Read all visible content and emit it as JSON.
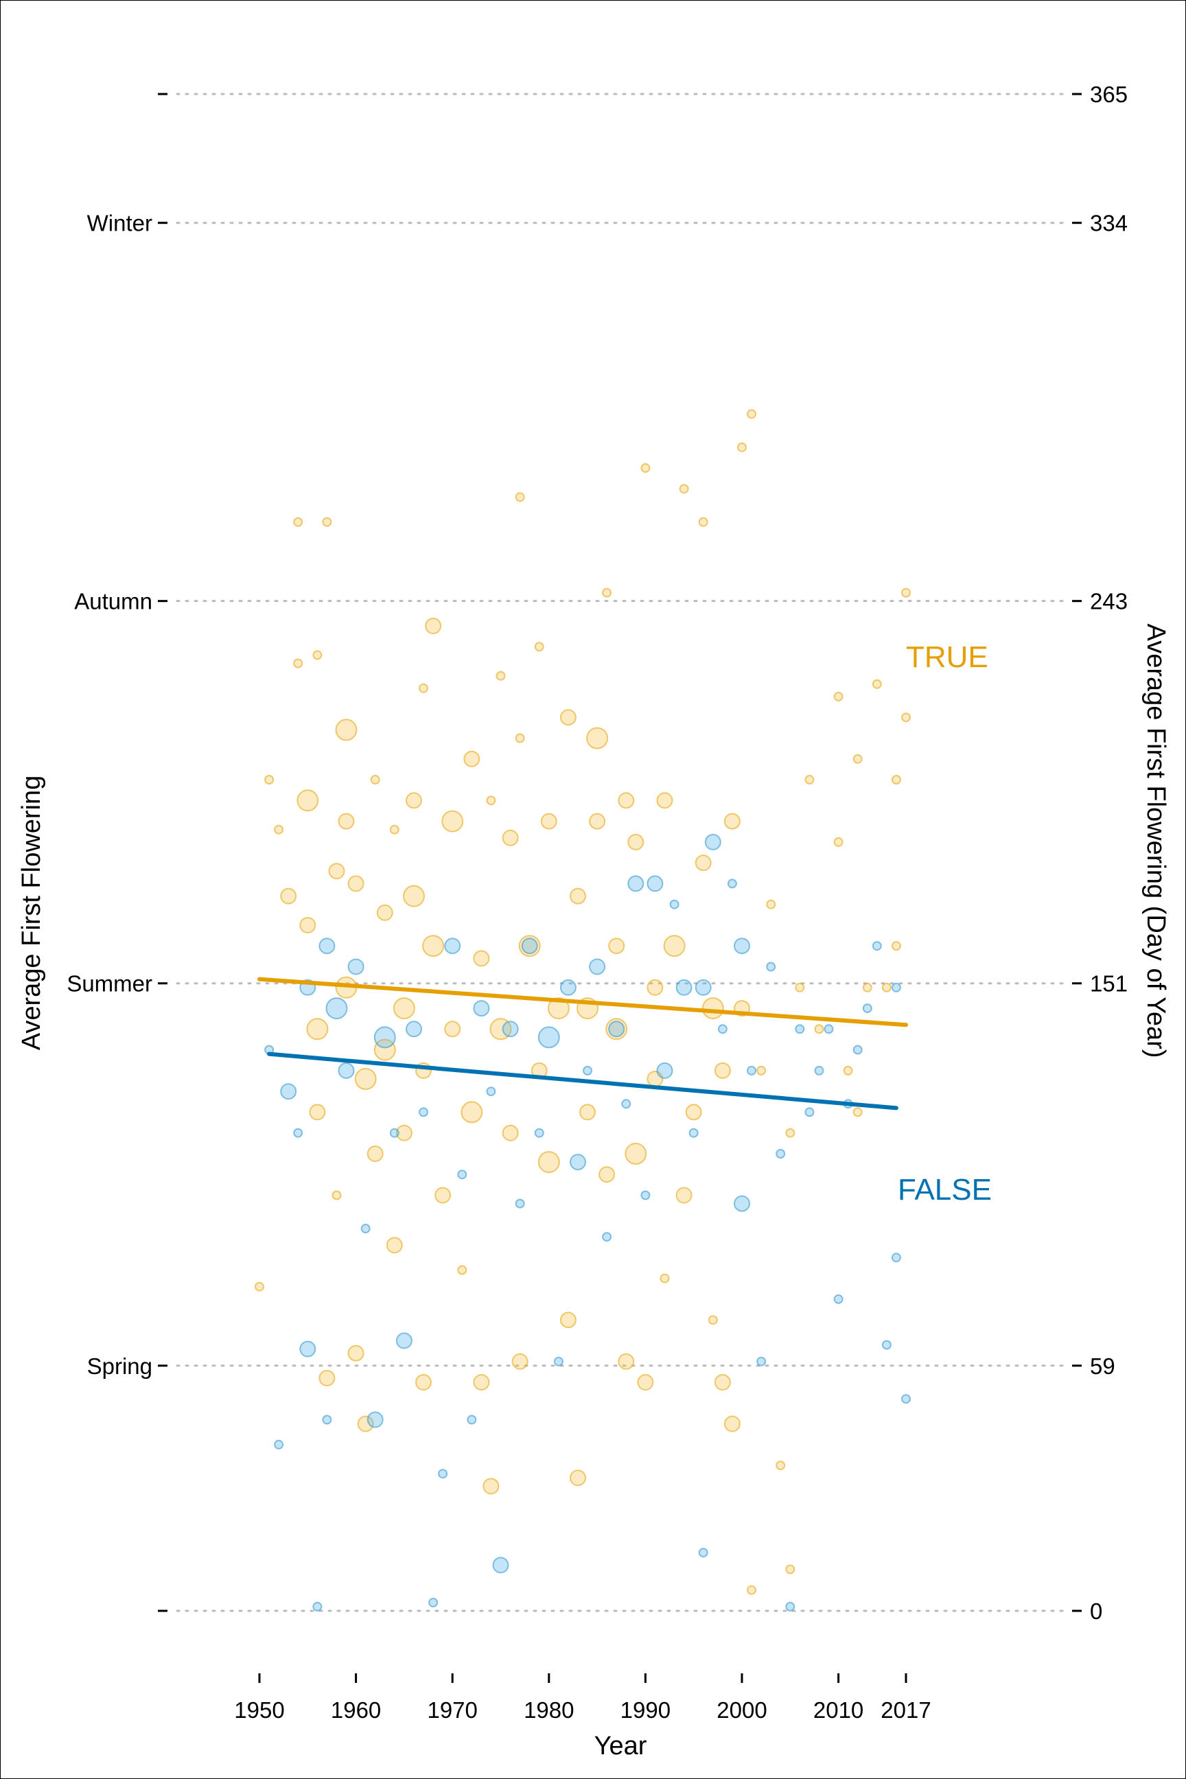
{
  "chart_data": {
    "type": "scatter",
    "title": "",
    "xlabel": "Year",
    "ylabel_left": "Average First Flowering",
    "ylabel_right": "Average First Flowering (Day of Year)",
    "xlim": [
      1950,
      2017
    ],
    "ylim": [
      0,
      365
    ],
    "x_ticks": [
      1950,
      1960,
      1970,
      1980,
      1990,
      2000,
      2010,
      2017
    ],
    "y_ticks_right": [
      0,
      59,
      151,
      243,
      334,
      365
    ],
    "y_ticks_left": [
      {
        "value": 0,
        "label": ""
      },
      {
        "value": 59,
        "label": "Spring"
      },
      {
        "value": 151,
        "label": "Summer"
      },
      {
        "value": 243,
        "label": "Autumn"
      },
      {
        "value": 334,
        "label": "Winter"
      },
      {
        "value": 365,
        "label": ""
      }
    ],
    "grid": "dotted horizontal lines at y ticks",
    "legend": "direct labels on the right",
    "series": [
      {
        "name": "TRUE",
        "color": "#E69F00",
        "trend": [
          [
            1950,
            152
          ],
          [
            2017,
            141
          ]
        ],
        "points": [
          [
            1950,
            78,
            1
          ],
          [
            1951,
            200,
            1
          ],
          [
            1952,
            188,
            1
          ],
          [
            1953,
            172,
            2
          ],
          [
            1954,
            262,
            1
          ],
          [
            1954,
            228,
            1
          ],
          [
            1955,
            195,
            3
          ],
          [
            1955,
            165,
            2
          ],
          [
            1956,
            140,
            3
          ],
          [
            1956,
            120,
            2
          ],
          [
            1956,
            230,
            1
          ],
          [
            1957,
            262,
            1
          ],
          [
            1957,
            56,
            2
          ],
          [
            1958,
            178,
            2
          ],
          [
            1958,
            100,
            1
          ],
          [
            1959,
            212,
            3
          ],
          [
            1959,
            190,
            2
          ],
          [
            1959,
            150,
            3
          ],
          [
            1960,
            62,
            2
          ],
          [
            1960,
            175,
            2
          ],
          [
            1961,
            128,
            3
          ],
          [
            1961,
            45,
            2
          ],
          [
            1962,
            200,
            1
          ],
          [
            1962,
            110,
            2
          ],
          [
            1963,
            168,
            2
          ],
          [
            1963,
            135,
            3
          ],
          [
            1964,
            188,
            1
          ],
          [
            1964,
            88,
            2
          ],
          [
            1965,
            145,
            3
          ],
          [
            1965,
            115,
            2
          ],
          [
            1966,
            195,
            2
          ],
          [
            1966,
            172,
            3
          ],
          [
            1967,
            222,
            1
          ],
          [
            1967,
            130,
            2
          ],
          [
            1967,
            55,
            2
          ],
          [
            1968,
            237,
            2
          ],
          [
            1968,
            160,
            3
          ],
          [
            1969,
            100,
            2
          ],
          [
            1970,
            190,
            3
          ],
          [
            1970,
            140,
            2
          ],
          [
            1971,
            82,
            1
          ],
          [
            1972,
            205,
            2
          ],
          [
            1972,
            120,
            3
          ],
          [
            1973,
            55,
            2
          ],
          [
            1973,
            157,
            2
          ],
          [
            1974,
            195,
            1
          ],
          [
            1974,
            30,
            2
          ],
          [
            1975,
            225,
            1
          ],
          [
            1975,
            140,
            3
          ],
          [
            1976,
            186,
            2
          ],
          [
            1976,
            115,
            2
          ],
          [
            1977,
            268,
            1
          ],
          [
            1977,
            210,
            1
          ],
          [
            1977,
            60,
            2
          ],
          [
            1978,
            160,
            3
          ],
          [
            1979,
            130,
            2
          ],
          [
            1979,
            232,
            1
          ],
          [
            1980,
            190,
            2
          ],
          [
            1980,
            108,
            3
          ],
          [
            1981,
            145,
            3
          ],
          [
            1982,
            215,
            2
          ],
          [
            1982,
            70,
            2
          ],
          [
            1983,
            172,
            2
          ],
          [
            1983,
            32,
            2
          ],
          [
            1984,
            145,
            3
          ],
          [
            1984,
            120,
            2
          ],
          [
            1985,
            210,
            3
          ],
          [
            1985,
            190,
            2
          ],
          [
            1986,
            245,
            1
          ],
          [
            1986,
            105,
            2
          ],
          [
            1987,
            160,
            2
          ],
          [
            1987,
            140,
            3
          ],
          [
            1988,
            195,
            2
          ],
          [
            1988,
            60,
            2
          ],
          [
            1989,
            185,
            2
          ],
          [
            1989,
            110,
            3
          ],
          [
            1990,
            275,
            1
          ],
          [
            1990,
            55,
            2
          ],
          [
            1991,
            150,
            2
          ],
          [
            1991,
            128,
            2
          ],
          [
            1992,
            195,
            2
          ],
          [
            1992,
            80,
            1
          ],
          [
            1993,
            160,
            3
          ],
          [
            1994,
            270,
            1
          ],
          [
            1994,
            100,
            2
          ],
          [
            1995,
            120,
            2
          ],
          [
            1996,
            262,
            1
          ],
          [
            1996,
            180,
            2
          ],
          [
            1997,
            145,
            3
          ],
          [
            1997,
            70,
            1
          ],
          [
            1998,
            130,
            2
          ],
          [
            1998,
            55,
            2
          ],
          [
            1999,
            190,
            2
          ],
          [
            1999,
            45,
            2
          ],
          [
            2000,
            145,
            2
          ],
          [
            2000,
            280,
            1
          ],
          [
            2001,
            288,
            1
          ],
          [
            2001,
            5,
            1
          ],
          [
            2002,
            130,
            1
          ],
          [
            2003,
            170,
            1
          ],
          [
            2004,
            35,
            1
          ],
          [
            2005,
            10,
            1
          ],
          [
            2005,
            115,
            1
          ],
          [
            2006,
            150,
            1
          ],
          [
            2007,
            200,
            1
          ],
          [
            2008,
            140,
            1
          ],
          [
            2010,
            220,
            1
          ],
          [
            2010,
            185,
            1
          ],
          [
            2011,
            130,
            1
          ],
          [
            2012,
            205,
            1
          ],
          [
            2013,
            150,
            1
          ],
          [
            2014,
            223,
            1
          ],
          [
            2015,
            150,
            1
          ],
          [
            2016,
            160,
            1
          ],
          [
            2017,
            245,
            1
          ],
          [
            2017,
            215,
            1
          ],
          [
            2016,
            200,
            1
          ],
          [
            2012,
            120,
            1
          ]
        ]
      },
      {
        "name": "FALSE",
        "color": "#0072B2",
        "trend": [
          [
            1951,
            134
          ],
          [
            2016,
            121
          ]
        ],
        "points": [
          [
            1951,
            135,
            1
          ],
          [
            1952,
            40,
            1
          ],
          [
            1953,
            125,
            2
          ],
          [
            1954,
            115,
            1
          ],
          [
            1955,
            150,
            2
          ],
          [
            1955,
            63,
            2
          ],
          [
            1956,
            1,
            1
          ],
          [
            1957,
            160,
            2
          ],
          [
            1957,
            46,
            1
          ],
          [
            1958,
            145,
            3
          ],
          [
            1959,
            130,
            2
          ],
          [
            1960,
            155,
            2
          ],
          [
            1961,
            92,
            1
          ],
          [
            1962,
            46,
            2
          ],
          [
            1963,
            138,
            3
          ],
          [
            1964,
            115,
            1
          ],
          [
            1965,
            65,
            2
          ],
          [
            1966,
            140,
            2
          ],
          [
            1967,
            120,
            1
          ],
          [
            1968,
            2,
            1
          ],
          [
            1969,
            33,
            1
          ],
          [
            1970,
            160,
            2
          ],
          [
            1971,
            105,
            1
          ],
          [
            1972,
            46,
            1
          ],
          [
            1973,
            145,
            2
          ],
          [
            1974,
            125,
            1
          ],
          [
            1975,
            11,
            2
          ],
          [
            1976,
            140,
            2
          ],
          [
            1977,
            98,
            1
          ],
          [
            1978,
            160,
            2
          ],
          [
            1979,
            115,
            1
          ],
          [
            1980,
            138,
            3
          ],
          [
            1981,
            60,
            1
          ],
          [
            1982,
            150,
            2
          ],
          [
            1983,
            108,
            2
          ],
          [
            1984,
            130,
            1
          ],
          [
            1985,
            155,
            2
          ],
          [
            1986,
            90,
            1
          ],
          [
            1987,
            140,
            2
          ],
          [
            1988,
            122,
            1
          ],
          [
            1989,
            175,
            2
          ],
          [
            1990,
            100,
            1
          ],
          [
            1991,
            175,
            2
          ],
          [
            1992,
            130,
            2
          ],
          [
            1993,
            170,
            1
          ],
          [
            1994,
            150,
            2
          ],
          [
            1995,
            115,
            1
          ],
          [
            1996,
            14,
            1
          ],
          [
            1996,
            150,
            2
          ],
          [
            1997,
            185,
            2
          ],
          [
            1998,
            140,
            1
          ],
          [
            1999,
            175,
            1
          ],
          [
            2000,
            160,
            2
          ],
          [
            2000,
            98,
            2
          ],
          [
            2001,
            130,
            1
          ],
          [
            2002,
            60,
            1
          ],
          [
            2003,
            155,
            1
          ],
          [
            2004,
            110,
            1
          ],
          [
            2005,
            1,
            1
          ],
          [
            2006,
            140,
            1
          ],
          [
            2007,
            120,
            1
          ],
          [
            2008,
            130,
            1
          ],
          [
            2009,
            140,
            1
          ],
          [
            2010,
            75,
            1
          ],
          [
            2011,
            122,
            1
          ],
          [
            2012,
            135,
            1
          ],
          [
            2013,
            145,
            1
          ],
          [
            2014,
            160,
            1
          ],
          [
            2015,
            64,
            1
          ],
          [
            2016,
            85,
            1
          ],
          [
            2016,
            150,
            1
          ],
          [
            2017,
            51,
            1
          ]
        ]
      }
    ]
  }
}
